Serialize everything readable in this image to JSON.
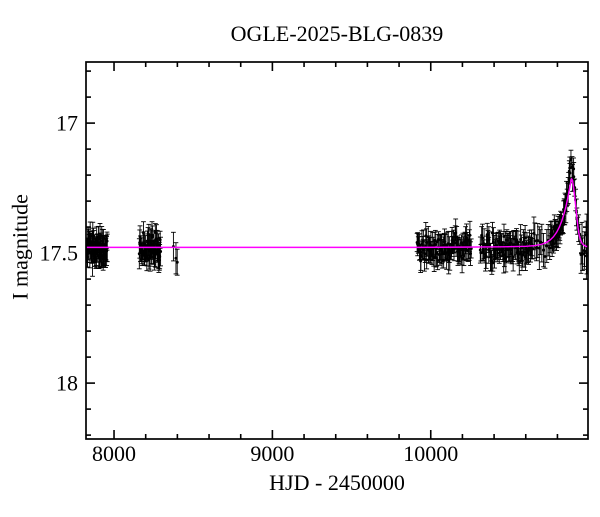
{
  "chart_data": {
    "type": "scatter",
    "title": "OGLE-2025-BLG-0839",
    "xlabel": "HJD - 2450000",
    "ylabel": "I magnitude",
    "xlim": [
      7823,
      10993
    ],
    "ylim": [
      18.215,
      16.765
    ],
    "y_axis_inverted": true,
    "grid": false,
    "legend": "none",
    "x_ticks_major": [
      {
        "value": 8000,
        "label": "8000"
      },
      {
        "value": 9000,
        "label": "9000"
      },
      {
        "value": 10000,
        "label": "10000"
      }
    ],
    "x_ticks_minor": [
      8200,
      8400,
      8600,
      8800,
      9200,
      9400,
      9600,
      9800,
      10200,
      10400,
      10600,
      10800
    ],
    "y_ticks_major": [
      {
        "value": 17,
        "label": "17"
      },
      {
        "value": 17.5,
        "label": "17.5"
      },
      {
        "value": 18,
        "label": "18"
      }
    ],
    "y_ticks_minor": [
      16.8,
      16.9,
      17.1,
      17.2,
      17.3,
      17.4,
      17.6,
      17.7,
      17.8,
      17.9,
      18.1,
      18.2
    ],
    "baseline_mag": 17.48,
    "point_color": "#000000",
    "model_color": "#ff00ff",
    "peak": {
      "t": 10886,
      "model_mag": 17.215,
      "data_peak_mag": 17.155
    },
    "peak_excess": {
      "amp": -0.06,
      "t_center": 10886,
      "width": 22
    },
    "model_curve": [
      [
        7823,
        17.478
      ],
      [
        8500,
        17.478
      ],
      [
        9200,
        17.478
      ],
      [
        9900,
        17.478
      ],
      [
        10200,
        17.477
      ],
      [
        10450,
        17.476
      ],
      [
        10600,
        17.474
      ],
      [
        10660,
        17.471
      ],
      [
        10700,
        17.466
      ],
      [
        10730,
        17.459
      ],
      [
        10755,
        17.449
      ],
      [
        10775,
        17.437
      ],
      [
        10795,
        17.42
      ],
      [
        10812,
        17.4
      ],
      [
        10828,
        17.375
      ],
      [
        10842,
        17.348
      ],
      [
        10854,
        17.32
      ],
      [
        10864,
        17.292
      ],
      [
        10872,
        17.266
      ],
      [
        10879,
        17.243
      ],
      [
        10884,
        17.226
      ],
      [
        10887,
        17.218
      ],
      [
        10890,
        17.215
      ],
      [
        10893,
        17.218
      ],
      [
        10897,
        17.228
      ],
      [
        10902,
        17.248
      ],
      [
        10908,
        17.278
      ],
      [
        10915,
        17.318
      ],
      [
        10922,
        17.36
      ],
      [
        10930,
        17.402
      ],
      [
        10938,
        17.432
      ],
      [
        10947,
        17.452
      ],
      [
        10957,
        17.464
      ],
      [
        10968,
        17.47
      ],
      [
        10980,
        17.474
      ],
      [
        10993,
        17.476
      ]
    ],
    "seasons": [
      {
        "id": "season-1",
        "type": "flat",
        "t0": 7823,
        "t1": 7958,
        "n": 65,
        "mag": 17.487,
        "scatter": 0.027,
        "err": [
          0.028,
          0.06
        ]
      },
      {
        "id": "season-2",
        "type": "flat",
        "t0": 8158,
        "t1": 8295,
        "n": 55,
        "mag": 17.483,
        "scatter": 0.027,
        "err": [
          0.028,
          0.06
        ]
      },
      {
        "id": "season-3",
        "type": "flat",
        "t0": 9912,
        "t1": 10258,
        "n": 95,
        "mag": 17.482,
        "scatter": 0.026,
        "err": [
          0.028,
          0.058
        ]
      },
      {
        "id": "season-4",
        "type": "flat",
        "t0": 10312,
        "t1": 10645,
        "n": 85,
        "mag": 17.48,
        "scatter": 0.025,
        "err": [
          0.028,
          0.058
        ]
      },
      {
        "id": "event-pre",
        "type": "model",
        "t0": 10646,
        "t1": 10746,
        "n": 11,
        "scatter": 0.024,
        "err": [
          0.035,
          0.09
        ]
      },
      {
        "id": "event-rise",
        "type": "model",
        "t0": 10749,
        "t1": 10881,
        "n": 46,
        "scatter": 0.017,
        "err": [
          0.03,
          0.05
        ]
      },
      {
        "id": "event-fall",
        "type": "model",
        "t0": 10883,
        "t1": 10941,
        "n": 12,
        "scatter": 0.018,
        "err": [
          0.032,
          0.055
        ]
      },
      {
        "id": "event-late",
        "type": "model",
        "t0": 10946,
        "t1": 10988,
        "n": 7,
        "scatter": 0.03,
        "err": [
          0.05,
          0.09
        ]
      }
    ],
    "single_points": [
      {
        "t": 8375,
        "mag": 17.475,
        "err": 0.055
      },
      {
        "t": 8391,
        "mag": 17.52,
        "err": 0.06
      },
      {
        "t": 8399,
        "mag": 17.535,
        "err": 0.05
      },
      {
        "t": 10986,
        "mag": 17.465,
        "err": 0.115
      }
    ]
  }
}
